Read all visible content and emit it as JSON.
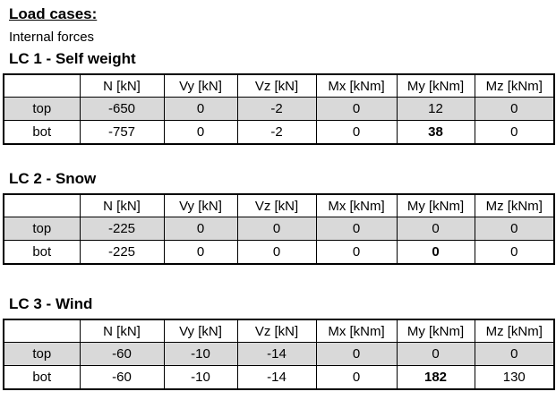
{
  "header": {
    "title": "Load cases:",
    "subtitle": "Internal forces"
  },
  "columns": [
    "",
    "N [kN]",
    "Vy [kN]",
    "Vz [kN]",
    "Mx [kNm]",
    "My [kNm]",
    "Mz [kNm]"
  ],
  "load_cases": [
    {
      "heading": "LC 1 - Self weight",
      "rows": [
        {
          "label": "top",
          "shaded": true,
          "values": [
            "-650",
            "0",
            "-2",
            "0",
            "12",
            "0"
          ],
          "bold_cols": []
        },
        {
          "label": "bot",
          "shaded": false,
          "values": [
            "-757",
            "0",
            "-2",
            "0",
            "38",
            "0"
          ],
          "bold_cols": [
            4
          ]
        }
      ]
    },
    {
      "heading": "LC 2 - Snow",
      "rows": [
        {
          "label": "top",
          "shaded": true,
          "values": [
            "-225",
            "0",
            "0",
            "0",
            "0",
            "0"
          ],
          "bold_cols": []
        },
        {
          "label": "bot",
          "shaded": false,
          "values": [
            "-225",
            "0",
            "0",
            "0",
            "0",
            "0"
          ],
          "bold_cols": [
            4
          ]
        }
      ]
    },
    {
      "heading": "LC 3 - Wind",
      "rows": [
        {
          "label": "top",
          "shaded": true,
          "values": [
            "-60",
            "-10",
            "-14",
            "0",
            "0",
            "0"
          ],
          "bold_cols": []
        },
        {
          "label": "bot",
          "shaded": false,
          "values": [
            "-60",
            "-10",
            "-14",
            "0",
            "182",
            "130"
          ],
          "bold_cols": [
            4
          ]
        }
      ]
    }
  ],
  "colors": {
    "shaded_row": "#d9d9d9",
    "border": "#000000",
    "text": "#000000",
    "background": "#ffffff"
  }
}
